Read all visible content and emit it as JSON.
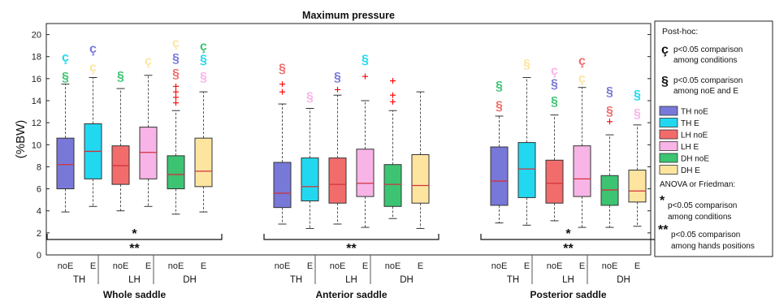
{
  "chart_data": {
    "type": "boxplot",
    "title": "Maximum pressure",
    "ylabel": "(%BW)",
    "ylim": [
      0,
      21
    ],
    "yticks": [
      0,
      2,
      4,
      6,
      8,
      10,
      12,
      14,
      16,
      18,
      20
    ],
    "grid": false,
    "legend_position": "right",
    "series": [
      {
        "name": "TH noE",
        "color": "#7878d8"
      },
      {
        "name": "TH E",
        "color": "#22d8f0"
      },
      {
        "name": "LH noE",
        "color": "#f26c6c"
      },
      {
        "name": "LH E",
        "color": "#f8b4e6"
      },
      {
        "name": "DH noE",
        "color": "#3cc473"
      },
      {
        "name": "DH E",
        "color": "#fde5a0"
      }
    ],
    "regions": [
      {
        "name": "Whole saddle",
        "group_labels": [
          "TH",
          "LH",
          "DH"
        ],
        "condition_labels": [
          "noE",
          "E",
          "noE",
          "E",
          "noE",
          "E"
        ],
        "boxes": [
          {
            "series": "TH noE",
            "whisker_low": 3.9,
            "q1": 6.0,
            "median": 8.2,
            "q3": 10.6,
            "whisker_high": 15.5,
            "outliers": [],
            "marks": [
              {
                "symbol": "§",
                "y": 16.2,
                "color": "#3cc473"
              },
              {
                "symbol": "ç",
                "y": 18.0,
                "color": "#22d8f0"
              }
            ]
          },
          {
            "series": "TH E",
            "whisker_low": 4.4,
            "q1": 6.9,
            "median": 9.4,
            "q3": 11.9,
            "whisker_high": 16.1,
            "outliers": [],
            "marks": [
              {
                "symbol": "ç",
                "y": 17.1,
                "color": "#fde5a0"
              },
              {
                "symbol": "ç",
                "y": 18.8,
                "color": "#7878d8"
              }
            ]
          },
          {
            "series": "LH noE",
            "whisker_low": 4.0,
            "q1": 6.4,
            "median": 8.1,
            "q3": 9.9,
            "whisker_high": 15.1,
            "outliers": [],
            "marks": [
              {
                "symbol": "§",
                "y": 16.3,
                "color": "#3cc473"
              }
            ]
          },
          {
            "series": "LH E",
            "whisker_low": 4.4,
            "q1": 6.9,
            "median": 9.3,
            "q3": 11.6,
            "whisker_high": 16.3,
            "outliers": [],
            "marks": [
              {
                "symbol": "ç",
                "y": 17.7,
                "color": "#fde5a0"
              }
            ]
          },
          {
            "series": "DH noE",
            "whisker_low": 3.7,
            "q1": 6.0,
            "median": 7.3,
            "q3": 9.0,
            "whisker_high": 13.1,
            "outliers": [
              13.8,
              14.3,
              14.8,
              15.3
            ],
            "marks": [
              {
                "symbol": "§",
                "y": 16.5,
                "color": "#f26c6c"
              },
              {
                "symbol": "§",
                "y": 17.9,
                "color": "#7878d8"
              },
              {
                "symbol": "ç",
                "y": 19.3,
                "color": "#fde5a0"
              }
            ]
          },
          {
            "series": "DH E",
            "whisker_low": 3.9,
            "q1": 6.2,
            "median": 7.6,
            "q3": 10.6,
            "whisker_high": 14.8,
            "outliers": [],
            "marks": [
              {
                "symbol": "§",
                "y": 16.2,
                "color": "#f8b4e6"
              },
              {
                "symbol": "§",
                "y": 17.8,
                "color": "#22d8f0"
              },
              {
                "symbol": "ç",
                "y": 19.0,
                "color": "#3cc473"
              }
            ]
          }
        ],
        "significance": [
          "*",
          "**"
        ]
      },
      {
        "name": "Anterior saddle",
        "group_labels": [
          "TH",
          "LH",
          "DH"
        ],
        "condition_labels": [
          "noE",
          "E",
          "noE",
          "E",
          "noE",
          "E"
        ],
        "boxes": [
          {
            "series": "TH noE",
            "whisker_low": 2.8,
            "q1": 4.3,
            "median": 5.6,
            "q3": 8.4,
            "whisker_high": 13.7,
            "outliers": [
              14.8,
              15.5
            ],
            "marks": [
              {
                "symbol": "§",
                "y": 17.0,
                "color": "#f26c6c"
              }
            ]
          },
          {
            "series": "TH E",
            "whisker_low": 2.4,
            "q1": 4.9,
            "median": 6.2,
            "q3": 8.8,
            "whisker_high": 13.3,
            "outliers": [],
            "marks": [
              {
                "symbol": "§",
                "y": 14.4,
                "color": "#f8b4e6"
              }
            ]
          },
          {
            "series": "LH noE",
            "whisker_low": 2.8,
            "q1": 4.7,
            "median": 6.4,
            "q3": 8.8,
            "whisker_high": 14.5,
            "outliers": [
              15.0
            ],
            "marks": [
              {
                "symbol": "§",
                "y": 16.2,
                "color": "#7878d8"
              }
            ]
          },
          {
            "series": "LH E",
            "whisker_low": 2.5,
            "q1": 5.3,
            "median": 6.5,
            "q3": 9.6,
            "whisker_high": 14.0,
            "outliers": [
              16.2
            ],
            "marks": [
              {
                "symbol": "§",
                "y": 17.8,
                "color": "#22d8f0"
              }
            ]
          },
          {
            "series": "DH noE",
            "whisker_low": 3.3,
            "q1": 4.4,
            "median": 6.4,
            "q3": 8.2,
            "whisker_high": 13.1,
            "outliers": [
              13.9,
              14.5,
              15.8
            ],
            "marks": []
          },
          {
            "series": "DH E",
            "whisker_low": 2.4,
            "q1": 4.7,
            "median": 6.3,
            "q3": 9.1,
            "whisker_high": 14.8,
            "outliers": [],
            "marks": []
          }
        ],
        "significance": [
          "**"
        ]
      },
      {
        "name": "Posterior saddle",
        "group_labels": [
          "TH",
          "LH",
          "DH"
        ],
        "condition_labels": [
          "noE",
          "E",
          "noE",
          "E",
          "noE",
          "E"
        ],
        "boxes": [
          {
            "series": "TH noE",
            "whisker_low": 2.9,
            "q1": 4.5,
            "median": 6.7,
            "q3": 9.8,
            "whisker_high": 12.6,
            "outliers": [],
            "marks": [
              {
                "symbol": "§",
                "y": 13.6,
                "color": "#f26c6c"
              },
              {
                "symbol": "§",
                "y": 15.4,
                "color": "#3cc473"
              }
            ]
          },
          {
            "series": "TH E",
            "whisker_low": 2.7,
            "q1": 5.2,
            "median": 7.8,
            "q3": 10.2,
            "whisker_high": 16.1,
            "outliers": [],
            "marks": [
              {
                "symbol": "§",
                "y": 17.4,
                "color": "#fde5a0"
              }
            ]
          },
          {
            "series": "LH noE",
            "whisker_low": 3.1,
            "q1": 4.7,
            "median": 6.5,
            "q3": 8.6,
            "whisker_high": 12.7,
            "outliers": [],
            "marks": [
              {
                "symbol": "§",
                "y": 14.0,
                "color": "#3cc473"
              },
              {
                "symbol": "§",
                "y": 15.6,
                "color": "#7878d8"
              },
              {
                "symbol": "ç",
                "y": 16.8,
                "color": "#f8b4e6"
              }
            ]
          },
          {
            "series": "LH E",
            "whisker_low": 2.5,
            "q1": 5.3,
            "median": 6.9,
            "q3": 9.9,
            "whisker_high": 15.2,
            "outliers": [],
            "marks": [
              {
                "symbol": "ç",
                "y": 16.1,
                "color": "#fde5a0"
              },
              {
                "symbol": "ç",
                "y": 17.7,
                "color": "#f26c6c"
              }
            ]
          },
          {
            "series": "DH noE",
            "whisker_low": 2.5,
            "q1": 4.5,
            "median": 5.9,
            "q3": 7.2,
            "whisker_high": 10.9,
            "outliers": [
              12.1
            ],
            "marks": [
              {
                "symbol": "§",
                "y": 13.1,
                "color": "#f26c6c"
              },
              {
                "symbol": "§",
                "y": 14.9,
                "color": "#7878d8"
              }
            ]
          },
          {
            "series": "DH E",
            "whisker_low": 2.6,
            "q1": 4.8,
            "median": 5.8,
            "q3": 7.7,
            "whisker_high": 11.8,
            "outliers": [],
            "marks": [
              {
                "symbol": "§",
                "y": 12.9,
                "color": "#f8b4e6"
              },
              {
                "symbol": "§",
                "y": 14.6,
                "color": "#22d8f0"
              }
            ]
          }
        ],
        "significance": [
          "*",
          "**"
        ]
      }
    ]
  },
  "legend": {
    "posthoc_heading": "Post-hoc:",
    "cedilla_symbol": "ç",
    "cedilla_text_line1": "p<0.05 comparison",
    "cedilla_text_line2": "among conditions",
    "section_symbol": "§",
    "section_text_line1": "p<0.05 comparison",
    "section_text_line2": "among noE and E",
    "anova_heading": "ANOVA or Friedman:",
    "star_symbol": "*",
    "star_text_line1": "p<0.05 comparison",
    "star_text_line2": "among conditions",
    "dstar_symbol": "**",
    "dstar_text_line1": "p<0.05 comparison",
    "dstar_text_line2": "among hands positions"
  },
  "outlier_color": "#ff0000"
}
